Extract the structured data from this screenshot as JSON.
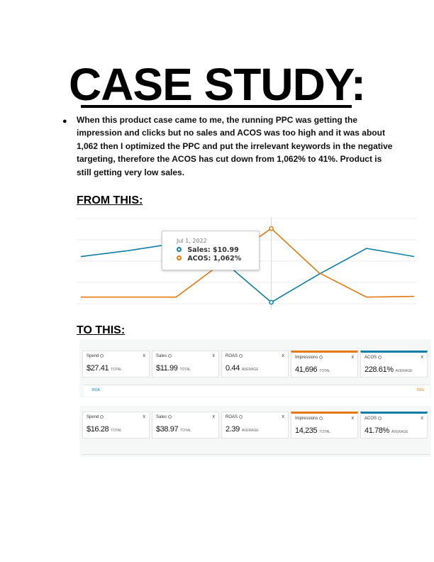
{
  "title": "CASE STUDY:",
  "paragraph": "When this product case came to me, the running PPC was getting the impression and clicks but no sales and ACOS was too high and it was about 1,062 then I optimized the PPC and put the irrelevant keywords in the negative targeting, therefore the ACOS has cut down from 1,062% to 41%. Product is still getting very low sales.",
  "from_title": "FROM THIS:",
  "to_title": "TO THIS:",
  "chart_data": {
    "type": "line",
    "series": [
      {
        "name": "Sales",
        "color": "#0f7ea6",
        "values": [
          0.62,
          0.7,
          0.8,
          0.55,
          0.0,
          0.38,
          0.73,
          0.62
        ]
      },
      {
        "name": "ACOS",
        "color": "#e47911",
        "values": [
          0.07,
          0.07,
          0.07,
          0.55,
          1.0,
          0.4,
          0.07,
          0.08
        ]
      }
    ],
    "grid": true,
    "tooltip": {
      "date": "Jul 1, 2022",
      "sales_label": "Sales:",
      "sales_value": "$10.99",
      "acos_label": "ACOS:",
      "acos_value": "1,062%"
    }
  },
  "panel_a": {
    "cards": [
      {
        "label": "Spend",
        "value": "$27.41",
        "unit": "TOTAL",
        "accent": ""
      },
      {
        "label": "Sales",
        "value": "$11.99",
        "unit": "TOTAL",
        "accent": ""
      },
      {
        "label": "ROAS",
        "value": "0.44",
        "unit": "AVERAGE",
        "accent": ""
      },
      {
        "label": "Impressions",
        "value": "41,696",
        "unit": "TOTAL",
        "accent": "orange"
      },
      {
        "label": "ACOS",
        "value": "228.61%",
        "unit": "AVERAGE",
        "accent": "blue"
      }
    ],
    "strip_left": "ROA",
    "strip_right": "50%"
  },
  "panel_b": {
    "cards": [
      {
        "label": "Spend",
        "value": "$16.28",
        "unit": "TOTAL",
        "accent": ""
      },
      {
        "label": "Sales",
        "value": "$38.97",
        "unit": "TOTAL",
        "accent": ""
      },
      {
        "label": "ROAS",
        "value": "2.39",
        "unit": "AVERAGE",
        "accent": ""
      },
      {
        "label": "Impressions",
        "value": "14,235",
        "unit": "TOTAL",
        "accent": "orange"
      },
      {
        "label": "ACOS",
        "value": "41.78%",
        "unit": "AVERAGE",
        "accent": "blue"
      }
    ]
  },
  "close_glyph": "x"
}
